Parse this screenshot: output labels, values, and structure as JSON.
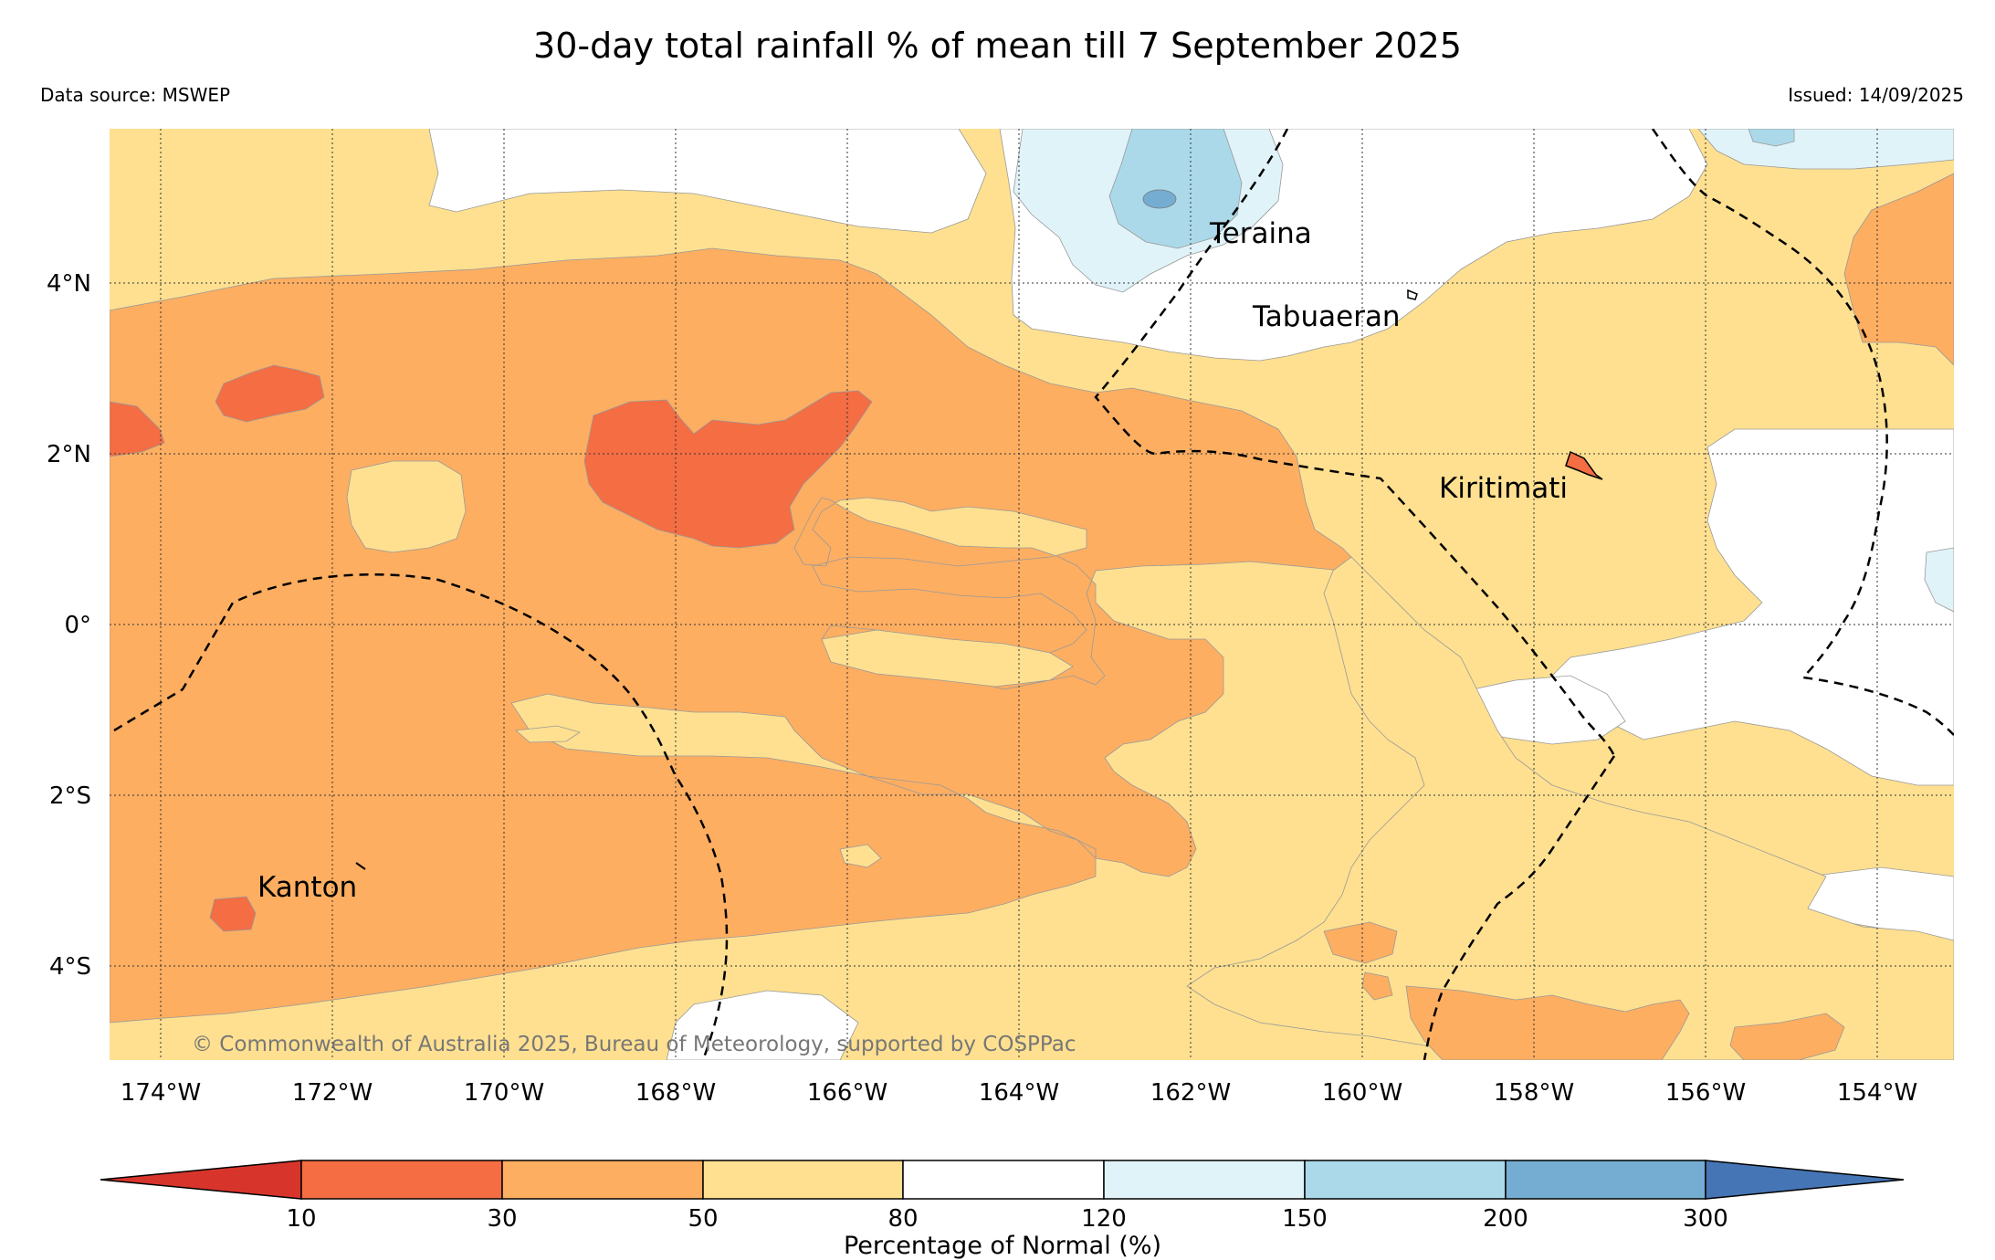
{
  "title": "30-day total rainfall % of mean till 7 September 2025",
  "data_source": "Data source: MSWEP",
  "issued": "Issued: 14/09/2025",
  "copyright": "© Commonwealth of Australia 2025, Bureau of Meteorology, supported by COSPPac",
  "longitude_labels": [
    "174°W",
    "172°W",
    "170°W",
    "168°W",
    "166°W",
    "164°W",
    "162°W",
    "160°W",
    "158°W",
    "156°W",
    "154°W"
  ],
  "latitude_labels": [
    "4°N",
    "2°N",
    "0°",
    "2°S",
    "4°S"
  ],
  "places": {
    "teraina": "Teraina",
    "tabuaeran": "Tabuaeran",
    "kiritimati": "Kiritimati",
    "kanton": "Kanton"
  },
  "colorbar": {
    "label": "Percentage of Normal (%)",
    "ticks": [
      "10",
      "30",
      "50",
      "80",
      "120",
      "150",
      "200",
      "300"
    ],
    "colors": {
      "lt10": "#d7352b",
      "10-30": "#f46d43",
      "30-50": "#fdae61",
      "50-80": "#fee090",
      "80-120": "#ffffff",
      "120-150": "#e0f3f8",
      "150-200": "#abd9e9",
      "200-300": "#74add1",
      "gt300": "#4575b4"
    }
  }
}
